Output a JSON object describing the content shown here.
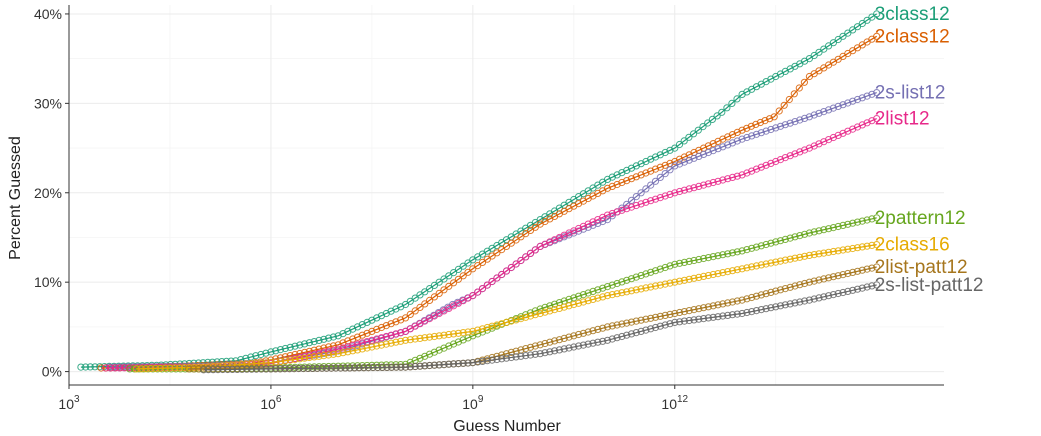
{
  "chart_data": {
    "type": "line",
    "xlabel": "Guess Number",
    "ylabel": "Percent Guessed",
    "x_scale": "log10",
    "xlim": [
      1000,
      10000000000000000
    ],
    "ylim": [
      -1.5,
      41
    ],
    "x_ticks": [
      {
        "value": 1000,
        "base": "10",
        "exp": "3"
      },
      {
        "value": 1000000,
        "base": "10",
        "exp": "6"
      },
      {
        "value": 1000000000,
        "base": "10",
        "exp": "9"
      },
      {
        "value": 1000000000000,
        "base": "10",
        "exp": "12"
      }
    ],
    "y_ticks": [
      {
        "value": 0,
        "label": "0%"
      },
      {
        "value": 10,
        "label": "10%"
      },
      {
        "value": 20,
        "label": "20%"
      },
      {
        "value": 30,
        "label": "30%"
      },
      {
        "value": 40,
        "label": "40%"
      }
    ],
    "grid": true,
    "legend": "direct labels at right end of each line",
    "series": [
      {
        "name": "3class12",
        "color": "#1b9e77",
        "points": [
          [
            1500,
            0.5
          ],
          [
            20000,
            0.7
          ],
          [
            300000,
            1.2
          ],
          [
            1000000,
            2.2
          ],
          [
            10000000,
            4
          ],
          [
            100000000,
            7.5
          ],
          [
            1000000000,
            12.5
          ],
          [
            10000000000,
            17
          ],
          [
            100000000000,
            21.5
          ],
          [
            1000000000000,
            25
          ],
          [
            5000000000000,
            29
          ],
          [
            10000000000000,
            31
          ],
          [
            100000000000000,
            35
          ],
          [
            1000000000000000,
            40
          ]
        ]
      },
      {
        "name": "2class12",
        "color": "#d95f02",
        "points": [
          [
            3000,
            0.4
          ],
          [
            50000,
            0.6
          ],
          [
            500000,
            0.9
          ],
          [
            1000000,
            1.3
          ],
          [
            10000000,
            3
          ],
          [
            100000000,
            6
          ],
          [
            1000000000,
            11.5
          ],
          [
            10000000000,
            16.5
          ],
          [
            100000000000,
            20.5
          ],
          [
            1000000000000,
            23.5
          ],
          [
            10000000000000,
            27
          ],
          [
            30000000000000,
            28.5
          ],
          [
            100000000000000,
            33
          ],
          [
            1000000000000000,
            37.5
          ]
        ]
      },
      {
        "name": "2s-list12",
        "color": "#7570b3",
        "points": [
          [
            4000,
            0.5
          ],
          [
            100000,
            0.6
          ],
          [
            1000000,
            1
          ],
          [
            10000000,
            2.3
          ],
          [
            100000000,
            4.5
          ],
          [
            500000000,
            7.5
          ],
          [
            1000000000,
            8.5
          ],
          [
            10000000000,
            14
          ],
          [
            100000000000,
            17
          ],
          [
            1000000000000,
            23
          ],
          [
            10000000000000,
            26
          ],
          [
            100000000000000,
            28.5
          ],
          [
            1000000000000000,
            31.2
          ]
        ]
      },
      {
        "name": "2list12",
        "color": "#e7298a",
        "points": [
          [
            3500,
            0.4
          ],
          [
            100000,
            0.5
          ],
          [
            1000000,
            0.9
          ],
          [
            10000000,
            2.5
          ],
          [
            100000000,
            4.5
          ],
          [
            1000000000,
            8.5
          ],
          [
            10000000000,
            14
          ],
          [
            100000000000,
            17.5
          ],
          [
            1000000000000,
            20
          ],
          [
            10000000000000,
            22
          ],
          [
            100000000000000,
            25
          ],
          [
            1000000000000000,
            28.3
          ]
        ]
      },
      {
        "name": "2pattern12",
        "color": "#66a61e",
        "points": [
          [
            8000,
            0.3
          ],
          [
            100000,
            0.3
          ],
          [
            1000000,
            0.4
          ],
          [
            10000000,
            0.6
          ],
          [
            100000000,
            0.8
          ],
          [
            1000000000,
            4
          ],
          [
            10000000000,
            7
          ],
          [
            100000000000,
            9.5
          ],
          [
            1000000000000,
            12
          ],
          [
            10000000000000,
            13.5
          ],
          [
            100000000000000,
            15.5
          ],
          [
            1000000000000000,
            17.2
          ]
        ]
      },
      {
        "name": "2class16",
        "color": "#e6ab02",
        "points": [
          [
            10000,
            0.3
          ],
          [
            100000,
            0.5
          ],
          [
            1000000,
            1
          ],
          [
            10000000,
            2
          ],
          [
            100000000,
            3.5
          ],
          [
            1000000000,
            4.5
          ],
          [
            10000000000,
            6.5
          ],
          [
            100000000000,
            8.5
          ],
          [
            1000000000000,
            10
          ],
          [
            10000000000000,
            11.5
          ],
          [
            100000000000000,
            13
          ],
          [
            1000000000000000,
            14.2
          ]
        ]
      },
      {
        "name": "2list-patt12",
        "color": "#a6761d",
        "points": [
          [
            60000,
            0.3
          ],
          [
            1000000,
            0.3
          ],
          [
            100000000,
            0.5
          ],
          [
            1000000000,
            1
          ],
          [
            10000000000,
            3
          ],
          [
            100000000000,
            5
          ],
          [
            1000000000000,
            6.5
          ],
          [
            10000000000000,
            8
          ],
          [
            100000000000000,
            10
          ],
          [
            1000000000000000,
            11.7
          ]
        ]
      },
      {
        "name": "2s-list-patt12",
        "color": "#666666",
        "points": [
          [
            100000,
            0.2
          ],
          [
            1000000,
            0.3
          ],
          [
            100000000,
            0.5
          ],
          [
            1000000000,
            1
          ],
          [
            10000000000,
            2
          ],
          [
            100000000000,
            3.5
          ],
          [
            1000000000000,
            5.5
          ],
          [
            10000000000000,
            6.5
          ],
          [
            100000000000000,
            8
          ],
          [
            1000000000000000,
            9.7
          ]
        ]
      }
    ]
  }
}
